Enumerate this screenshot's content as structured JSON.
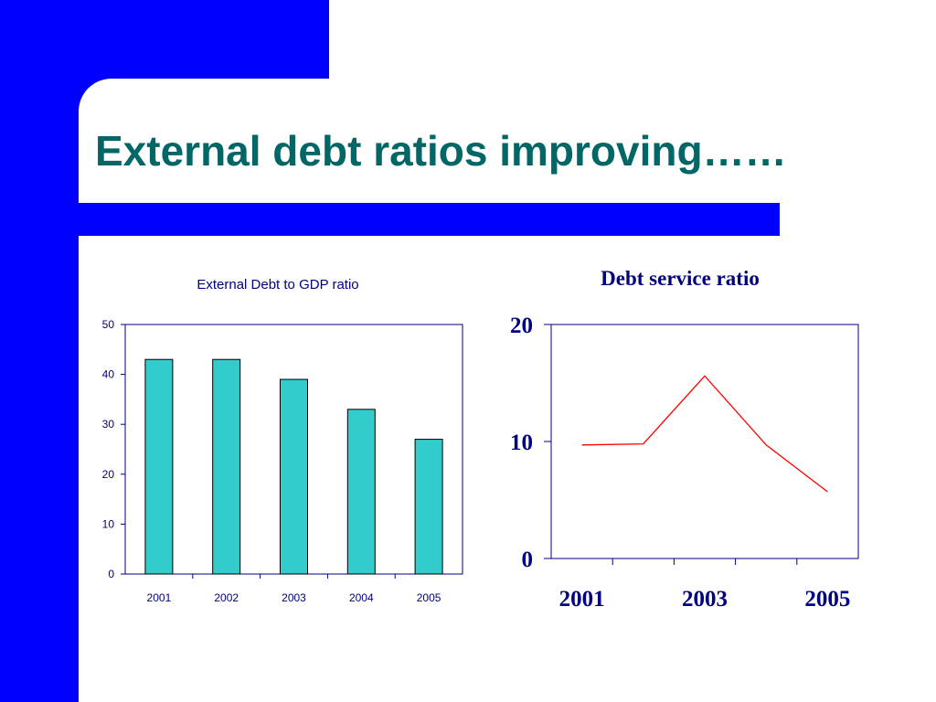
{
  "slide": {
    "title": "External debt ratios improving……",
    "colors": {
      "band": "#0000ff",
      "title": "#006666",
      "text": "#000080",
      "bar_fill": "#33cccc",
      "line": "#ff0000"
    }
  },
  "chart_data": [
    {
      "type": "bar",
      "title": "External Debt to GDP ratio",
      "categories": [
        "2001",
        "2002",
        "2003",
        "2004",
        "2005"
      ],
      "values": [
        43,
        43,
        39,
        33,
        27
      ],
      "ylim": [
        0,
        50
      ],
      "yticks": [
        "0",
        "10",
        "20",
        "30",
        "40",
        "50"
      ],
      "xlabel": "",
      "ylabel": "",
      "grid": false,
      "legend": "none"
    },
    {
      "type": "line",
      "title": "Debt service ratio",
      "x": [
        "2001",
        "2002",
        "2003",
        "2004",
        "2005"
      ],
      "values": [
        9.7,
        9.8,
        15.6,
        9.7,
        5.7
      ],
      "ylim": [
        0,
        20
      ],
      "yticks": [
        "0",
        "10",
        "20"
      ],
      "xticks": [
        "2001",
        "2003",
        "2005"
      ],
      "xlabel": "",
      "ylabel": "",
      "grid": false,
      "legend": "none"
    }
  ]
}
